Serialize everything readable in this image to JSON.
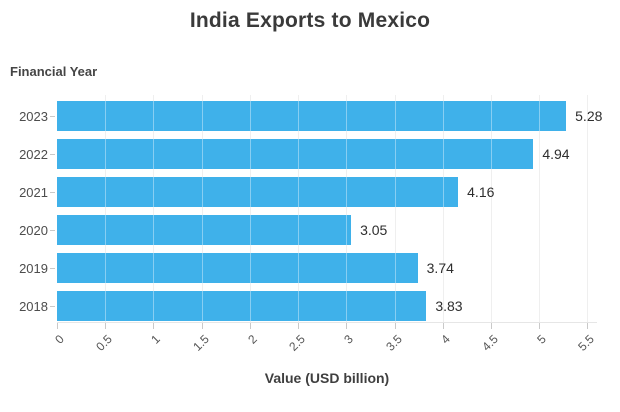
{
  "title": "India Exports to Mexico",
  "axes": {
    "y_title": "Financial Year",
    "x_title": "Value (USD billion)"
  },
  "colors": {
    "bar": "#3fb1ea",
    "title_text": "#3a3a3a",
    "axis_title_text": "#3f3f3f",
    "category_label": "#4d4d4d",
    "value_label": "#2e2e2e",
    "x_tick_label": "#555555",
    "gridline": "#e6e6e6",
    "gridline_over_bar": "rgba(255,255,255,0.38)",
    "tick_mark": "#c9c9c9",
    "background": "#ffffff"
  },
  "chart_data": {
    "type": "bar",
    "orientation": "horizontal",
    "title": "India Exports to Mexico",
    "xlabel": "Value (USD billion)",
    "ylabel": "Financial Year",
    "categories": [
      "2023",
      "2022",
      "2021",
      "2020",
      "2019",
      "2018"
    ],
    "values": [
      5.28,
      4.94,
      4.16,
      3.05,
      3.74,
      3.83
    ],
    "value_labels": [
      "5.28",
      "4.94",
      "4.16",
      "3.05",
      "3.74",
      "3.83"
    ],
    "xlim": [
      0,
      5.6
    ],
    "xticks": [
      0,
      0.5,
      1,
      1.5,
      2,
      2.5,
      3,
      3.5,
      4,
      4.5,
      5,
      5.5
    ],
    "xtick_labels": [
      "0",
      "0.5",
      "1",
      "1.5",
      "2",
      "2.5",
      "3",
      "3.5",
      "4",
      "4.5",
      "5",
      "5.5"
    ],
    "grid": true,
    "legend": false
  }
}
